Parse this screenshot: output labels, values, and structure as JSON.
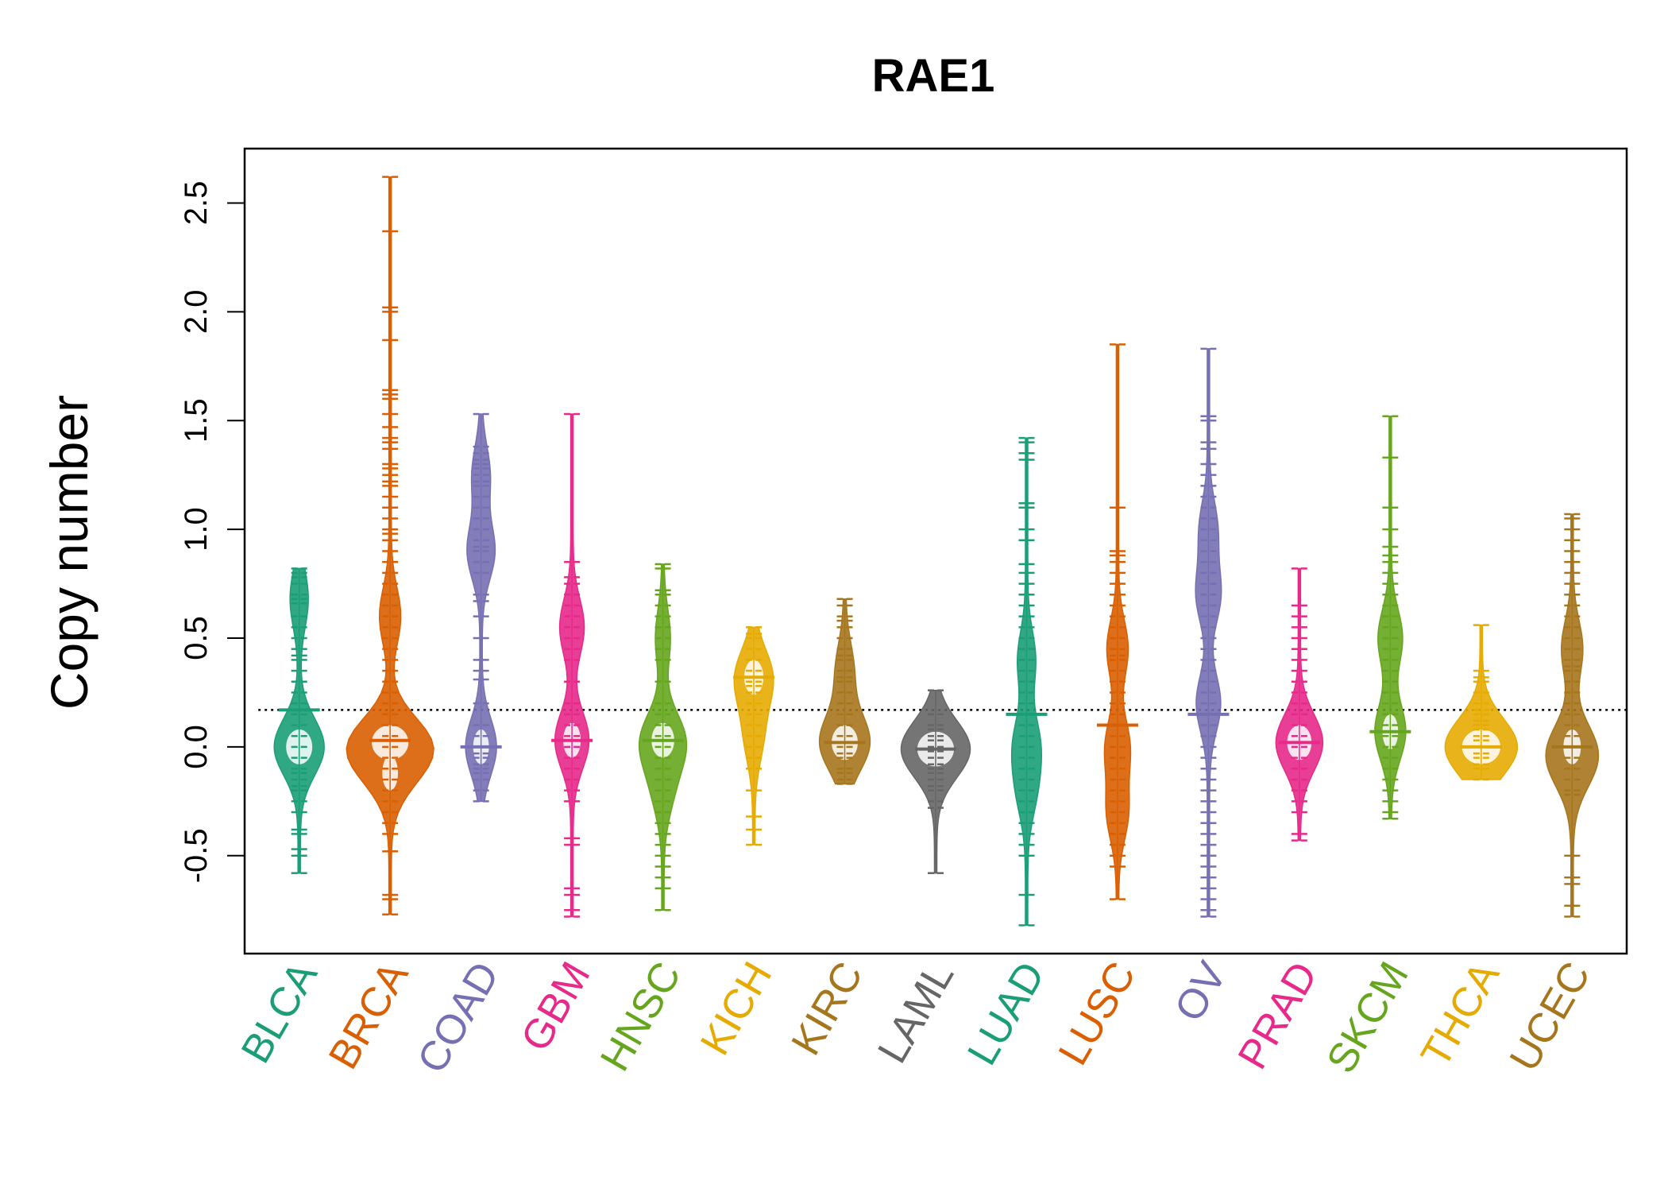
{
  "chart_data": {
    "type": "beanplot",
    "title": "RAE1",
    "ylabel": "Copy number",
    "xlabel": "",
    "ylim": [
      -0.95,
      2.75
    ],
    "yticks": [
      -0.5,
      0.0,
      0.5,
      1.0,
      1.5,
      2.0,
      2.5
    ],
    "ytick_labels": [
      "-0.5",
      "0.0",
      "0.5",
      "1.0",
      "1.5",
      "2.0",
      "2.5"
    ],
    "reference_line": 0.17,
    "reference_line_style": "dotted",
    "grid": false,
    "legend": "none",
    "categories": [
      {
        "name": "BLCA",
        "color": "#1B9E77",
        "median": 0.17,
        "density_peaks": [
          [
            0.0,
            30
          ],
          [
            0.68,
            10
          ]
        ],
        "values": [
          0.82,
          0.8,
          0.78,
          0.75,
          0.7,
          0.68,
          0.66,
          0.6,
          0.55,
          0.5,
          0.45,
          0.42,
          0.4,
          0.35,
          0.3,
          0.25,
          0.2,
          0.15,
          0.1,
          0.05,
          0.0,
          -0.05,
          -0.1,
          -0.12,
          -0.15,
          -0.18,
          -0.2,
          -0.25,
          -0.3,
          -0.38,
          -0.4,
          -0.47,
          -0.5,
          -0.58
        ]
      },
      {
        "name": "BRCA",
        "color": "#D95F02",
        "median": 0.03,
        "density_peaks": [
          [
            0.02,
            42
          ],
          [
            -0.12,
            18
          ],
          [
            0.6,
            12
          ]
        ],
        "values": [
          2.62,
          2.37,
          2.02,
          2.0,
          1.87,
          1.64,
          1.62,
          1.6,
          1.53,
          1.47,
          1.42,
          1.4,
          1.37,
          1.3,
          1.28,
          1.25,
          1.22,
          1.2,
          1.15,
          1.1,
          1.05,
          1.0,
          0.98,
          0.95,
          0.9,
          0.85,
          0.8,
          0.75,
          0.7,
          0.65,
          0.6,
          0.55,
          0.5,
          0.45,
          0.4,
          0.35,
          0.3,
          0.25,
          0.2,
          0.15,
          0.1,
          0.05,
          0.03,
          0.0,
          -0.05,
          -0.1,
          -0.15,
          -0.2,
          -0.25,
          -0.3,
          -0.35,
          -0.4,
          -0.48,
          -0.68,
          -0.7,
          -0.77
        ]
      },
      {
        "name": "COAD",
        "color": "#7570B3",
        "median": 0.0,
        "density_peaks": [
          [
            0.0,
            18
          ],
          [
            0.9,
            16
          ],
          [
            1.25,
            10
          ]
        ],
        "values": [
          1.53,
          1.38,
          1.35,
          1.32,
          1.3,
          1.28,
          1.25,
          1.22,
          1.2,
          1.15,
          1.1,
          1.05,
          1.0,
          0.95,
          0.92,
          0.9,
          0.85,
          0.8,
          0.7,
          0.67,
          0.6,
          0.5,
          0.4,
          0.35,
          0.31,
          0.2,
          0.1,
          0.05,
          0.0,
          -0.03,
          -0.05,
          -0.08,
          -0.1,
          -0.12,
          -0.15,
          -0.2,
          -0.25
        ]
      },
      {
        "name": "GBM",
        "color": "#E7298A",
        "median": 0.03,
        "density_peaks": [
          [
            0.03,
            20
          ],
          [
            0.55,
            14
          ]
        ],
        "values": [
          1.53,
          0.85,
          0.78,
          0.75,
          0.7,
          0.65,
          0.6,
          0.55,
          0.5,
          0.45,
          0.4,
          0.3,
          0.2,
          0.15,
          0.1,
          0.05,
          0.03,
          0.0,
          -0.05,
          -0.1,
          -0.15,
          -0.2,
          -0.25,
          -0.42,
          -0.45,
          -0.65,
          -0.68,
          -0.75,
          -0.78
        ]
      },
      {
        "name": "HNSC",
        "color": "#66A61E",
        "median": 0.03,
        "density_peaks": [
          [
            0.03,
            26
          ],
          [
            0.5,
            8
          ],
          [
            -0.2,
            10
          ]
        ],
        "values": [
          0.84,
          0.82,
          0.72,
          0.7,
          0.65,
          0.6,
          0.55,
          0.5,
          0.45,
          0.4,
          0.3,
          0.2,
          0.15,
          0.1,
          0.05,
          0.03,
          0.0,
          -0.05,
          -0.1,
          -0.15,
          -0.2,
          -0.25,
          -0.3,
          -0.35,
          -0.4,
          -0.45,
          -0.5,
          -0.55,
          -0.6,
          -0.65,
          -0.75
        ]
      },
      {
        "name": "KICH",
        "color": "#E6AB02",
        "median": 0.32,
        "density_peaks": [
          [
            0.32,
            22
          ],
          [
            0.05,
            10
          ]
        ],
        "values": [
          0.55,
          0.52,
          0.5,
          0.45,
          0.4,
          0.35,
          0.32,
          0.3,
          0.28,
          0.25,
          0.2,
          0.15,
          0.1,
          0.05,
          0.0,
          -0.05,
          -0.1,
          -0.2,
          -0.32,
          -0.38,
          -0.45
        ]
      },
      {
        "name": "KIRC",
        "color": "#A6761D",
        "median": 0.02,
        "density_peaks": [
          [
            0.02,
            30
          ],
          [
            0.35,
            10
          ]
        ],
        "values": [
          0.68,
          0.65,
          0.6,
          0.58,
          0.55,
          0.5,
          0.45,
          0.42,
          0.4,
          0.35,
          0.32,
          0.3,
          0.25,
          0.2,
          0.15,
          0.1,
          0.05,
          0.02,
          0.0,
          -0.03,
          -0.05,
          -0.1,
          -0.12,
          -0.15,
          -0.17
        ]
      },
      {
        "name": "LAML",
        "color": "#666666",
        "median": -0.01,
        "density_peaks": [
          [
            -0.01,
            42
          ]
        ],
        "values": [
          0.26,
          0.15,
          0.1,
          0.08,
          0.05,
          0.03,
          0.0,
          -0.02,
          -0.05,
          -0.08,
          -0.1,
          -0.12,
          -0.15,
          -0.18,
          -0.2,
          -0.25,
          -0.28,
          -0.58
        ]
      },
      {
        "name": "LUAD",
        "color": "#1B9E77",
        "median": 0.15,
        "density_peaks": [
          [
            0.4,
            10
          ],
          [
            0.02,
            14
          ],
          [
            -0.2,
            10
          ]
        ],
        "values": [
          1.42,
          1.4,
          1.35,
          1.32,
          1.12,
          1.1,
          1.0,
          0.95,
          0.84,
          0.8,
          0.75,
          0.7,
          0.65,
          0.6,
          0.55,
          0.5,
          0.45,
          0.4,
          0.35,
          0.3,
          0.25,
          0.2,
          0.15,
          0.1,
          0.05,
          0.0,
          -0.05,
          -0.1,
          -0.15,
          -0.2,
          -0.25,
          -0.3,
          -0.35,
          -0.4,
          -0.45,
          -0.5,
          -0.68,
          -0.82
        ]
      },
      {
        "name": "LUSC",
        "color": "#D95F02",
        "median": 0.1,
        "density_peaks": [
          [
            0.45,
            12
          ],
          [
            0.0,
            14
          ],
          [
            -0.3,
            12
          ]
        ],
        "values": [
          1.85,
          1.1,
          0.9,
          0.88,
          0.85,
          0.8,
          0.75,
          0.7,
          0.65,
          0.6,
          0.55,
          0.5,
          0.45,
          0.42,
          0.4,
          0.35,
          0.3,
          0.25,
          0.2,
          0.15,
          0.1,
          0.05,
          0.0,
          -0.05,
          -0.1,
          -0.15,
          -0.2,
          -0.25,
          -0.3,
          -0.35,
          -0.4,
          -0.45,
          -0.5,
          -0.55,
          -0.7
        ]
      },
      {
        "name": "OV",
        "color": "#7570B3",
        "median": 0.15,
        "density_peaks": [
          [
            0.7,
            14
          ],
          [
            0.2,
            14
          ],
          [
            1.0,
            10
          ]
        ],
        "values": [
          1.83,
          1.52,
          1.5,
          1.4,
          1.37,
          1.3,
          1.25,
          1.2,
          1.15,
          1.1,
          1.05,
          1.0,
          0.95,
          0.9,
          0.85,
          0.8,
          0.75,
          0.7,
          0.65,
          0.6,
          0.55,
          0.5,
          0.45,
          0.4,
          0.35,
          0.3,
          0.25,
          0.2,
          0.15,
          0.1,
          0.05,
          0.0,
          -0.05,
          -0.1,
          -0.15,
          -0.2,
          -0.25,
          -0.3,
          -0.35,
          -0.4,
          -0.45,
          -0.5,
          -0.55,
          -0.6,
          -0.65,
          -0.7,
          -0.75,
          -0.78
        ]
      },
      {
        "name": "PRAD",
        "color": "#E7298A",
        "median": 0.02,
        "density_peaks": [
          [
            0.02,
            28
          ]
        ],
        "values": [
          0.82,
          0.65,
          0.6,
          0.55,
          0.5,
          0.45,
          0.4,
          0.35,
          0.3,
          0.25,
          0.2,
          0.15,
          0.1,
          0.05,
          0.02,
          0.0,
          -0.05,
          -0.1,
          -0.15,
          -0.2,
          -0.25,
          -0.3,
          -0.4,
          -0.43
        ]
      },
      {
        "name": "SKCM",
        "color": "#66A61E",
        "median": 0.07,
        "density_peaks": [
          [
            0.07,
            18
          ],
          [
            0.5,
            14
          ]
        ],
        "values": [
          1.52,
          1.33,
          1.1,
          1.0,
          0.92,
          0.88,
          0.85,
          0.8,
          0.75,
          0.7,
          0.65,
          0.6,
          0.55,
          0.5,
          0.45,
          0.4,
          0.35,
          0.3,
          0.25,
          0.2,
          0.15,
          0.1,
          0.07,
          0.05,
          0.0,
          -0.05,
          -0.1,
          -0.15,
          -0.2,
          -0.25,
          -0.3,
          -0.33
        ]
      },
      {
        "name": "THCA",
        "color": "#E6AB02",
        "median": 0.0,
        "density_peaks": [
          [
            0.0,
            44
          ]
        ],
        "values": [
          0.56,
          0.35,
          0.32,
          0.3,
          0.25,
          0.2,
          0.17,
          0.15,
          0.12,
          0.1,
          0.08,
          0.05,
          0.03,
          0.0,
          -0.03,
          -0.05,
          -0.08,
          -0.1,
          -0.15
        ]
      },
      {
        "name": "UCEC",
        "color": "#A6761D",
        "median": 0.0,
        "density_peaks": [
          [
            0.0,
            20
          ],
          [
            0.45,
            12
          ],
          [
            -0.1,
            14
          ]
        ],
        "values": [
          1.07,
          1.05,
          1.0,
          0.95,
          0.9,
          0.85,
          0.8,
          0.75,
          0.7,
          0.65,
          0.6,
          0.55,
          0.5,
          0.45,
          0.4,
          0.37,
          0.35,
          0.3,
          0.25,
          0.2,
          0.15,
          0.1,
          0.05,
          0.0,
          -0.05,
          -0.1,
          -0.15,
          -0.2,
          -0.22,
          -0.5,
          -0.6,
          -0.63,
          -0.73,
          -0.78
        ]
      }
    ]
  }
}
